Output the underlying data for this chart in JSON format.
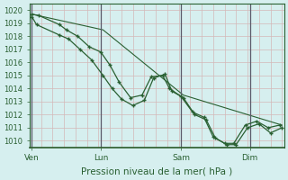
{
  "title": "",
  "xlabel": "Pression niveau de la mer( hPa )",
  "ylabel": "",
  "ylim": [
    1009.5,
    1020.5
  ],
  "yticks": [
    1010,
    1011,
    1012,
    1013,
    1014,
    1015,
    1016,
    1017,
    1018,
    1019,
    1020
  ],
  "bg_color": "#d6efef",
  "grid_color": "#d4b8b8",
  "line_color": "#2a6032",
  "marker_color": "#2a6032",
  "tick_label_color": "#2a6032",
  "axis_label_color": "#2a6032",
  "vline_color": "#5a5a6a",
  "xtick_labels": [
    "Ven",
    "Lun",
    "Sam",
    "Dim"
  ],
  "xtick_positions": [
    0.0,
    3.0,
    6.5,
    9.5
  ],
  "xlim": [
    -0.1,
    11.0
  ],
  "line1_x": [
    0.0,
    0.3,
    1.2,
    1.5,
    2.0,
    2.5,
    3.0,
    3.4,
    3.8,
    4.3,
    4.8,
    5.2,
    5.7,
    6.0,
    6.5,
    7.0,
    7.5,
    7.9,
    8.4,
    8.8,
    9.3,
    9.8,
    10.3,
    10.8
  ],
  "line1_y": [
    1019.7,
    1019.6,
    1018.9,
    1018.5,
    1018.0,
    1017.2,
    1016.8,
    1015.8,
    1014.5,
    1013.3,
    1013.5,
    1014.9,
    1015.0,
    1014.0,
    1013.4,
    1012.2,
    1011.8,
    1010.3,
    1009.8,
    1009.8,
    1011.2,
    1011.5,
    1011.0,
    1011.2
  ],
  "line2_x": [
    0.0,
    0.2,
    1.2,
    1.6,
    2.1,
    2.6,
    3.1,
    3.5,
    3.9,
    4.4,
    4.9,
    5.3,
    5.8,
    6.1,
    6.6,
    7.1,
    7.6,
    8.0,
    8.5,
    8.9,
    9.4,
    9.9,
    10.4,
    10.9
  ],
  "line2_y": [
    1019.5,
    1018.9,
    1018.1,
    1017.8,
    1017.0,
    1016.2,
    1015.0,
    1014.0,
    1013.2,
    1012.7,
    1013.1,
    1014.8,
    1015.1,
    1013.8,
    1013.3,
    1012.0,
    1011.6,
    1010.2,
    1009.7,
    1009.7,
    1011.0,
    1011.3,
    1010.6,
    1011.0
  ],
  "line3_x": [
    0.0,
    3.1,
    6.6,
    10.9
  ],
  "line3_y": [
    1019.7,
    1018.5,
    1013.5,
    1011.2
  ],
  "vlines": [
    0.0,
    3.0,
    6.5,
    9.5
  ],
  "figsize": [
    3.2,
    2.0
  ],
  "dpi": 100
}
